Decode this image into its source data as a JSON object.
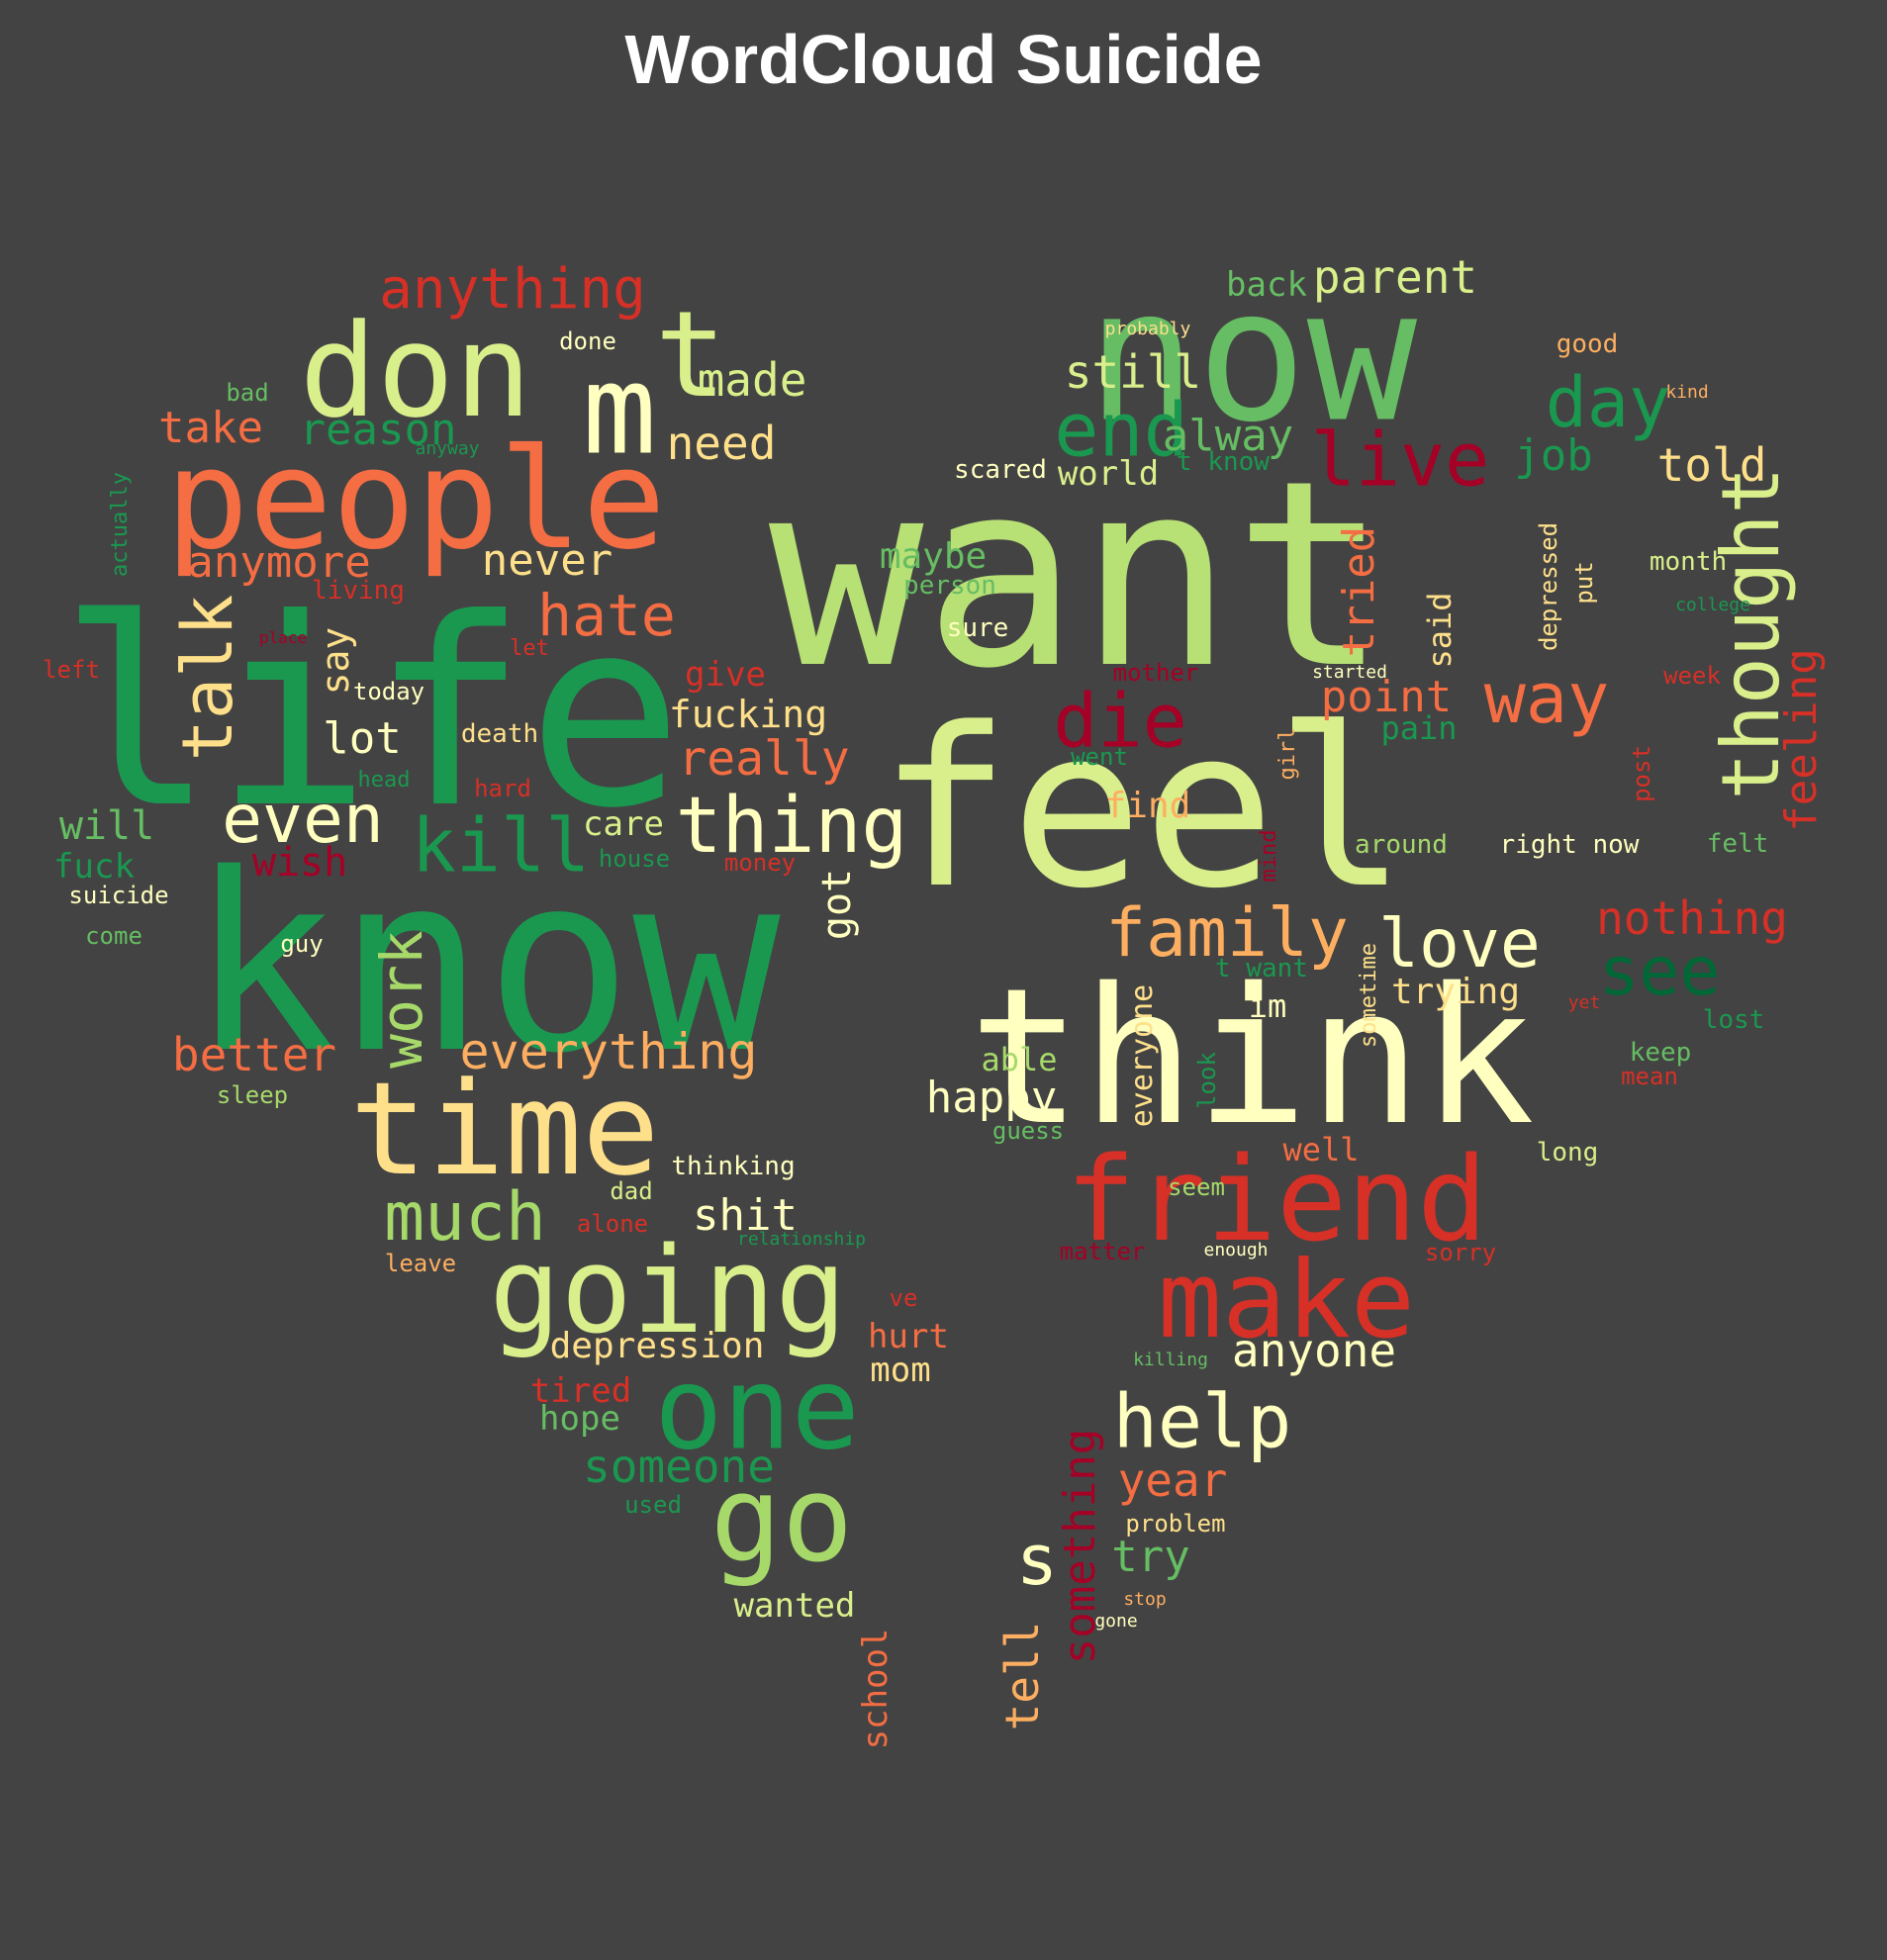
{
  "title": "WordCloud Suicide",
  "colors": {
    "background": "#434343",
    "title": "#ffffff"
  },
  "words": [
    {
      "text": "want",
      "color": "#b7e075"
    },
    {
      "text": "feel",
      "color": "#d9ef8b"
    },
    {
      "text": "know",
      "color": "#1a9850"
    },
    {
      "text": "life",
      "color": "#1a9850"
    },
    {
      "text": "think",
      "color": "#ffffbf"
    },
    {
      "text": "now",
      "color": "#66bd63"
    },
    {
      "text": "people",
      "color": "#f46d43"
    },
    {
      "text": "don",
      "color": "#d9ef8b"
    },
    {
      "text": "time",
      "color": "#fee08b"
    },
    {
      "text": "friend",
      "color": "#d73027"
    },
    {
      "text": "going",
      "color": "#d9ef8b"
    },
    {
      "text": "make",
      "color": "#d73027"
    },
    {
      "text": "one",
      "color": "#1a9850"
    },
    {
      "text": "go",
      "color": "#a6d96a"
    },
    {
      "text": "m",
      "color": "#ffffbf"
    },
    {
      "text": "t",
      "color": "#d9ef8b"
    },
    {
      "text": "thing",
      "color": "#ffffbf"
    },
    {
      "text": "end",
      "color": "#1a9850"
    },
    {
      "text": "live",
      "color": "#a50026"
    },
    {
      "text": "die",
      "color": "#a50026"
    },
    {
      "text": "family",
      "color": "#fdae61"
    },
    {
      "text": "love",
      "color": "#ffffbf"
    },
    {
      "text": "help",
      "color": "#ffffbf"
    },
    {
      "text": "thought",
      "color": "#d9ef8b"
    },
    {
      "text": "day",
      "color": "#1a9850"
    },
    {
      "text": "kill",
      "color": "#1a9850"
    },
    {
      "text": "much",
      "color": "#a6d96a"
    },
    {
      "text": "even",
      "color": "#ffffbf"
    },
    {
      "text": "talk",
      "color": "#fee08b"
    },
    {
      "text": "way",
      "color": "#f46d43"
    },
    {
      "text": "see",
      "color": "#006837"
    },
    {
      "text": "anything",
      "color": "#d73027"
    },
    {
      "text": "hate",
      "color": "#f46d43"
    },
    {
      "text": "work",
      "color": "#a6d96a"
    },
    {
      "text": "everything",
      "color": "#fdae61"
    },
    {
      "text": "s",
      "color": "#ffffbf"
    },
    {
      "text": "parent",
      "color": "#d9ef8b"
    },
    {
      "text": "still",
      "color": "#d9ef8b"
    },
    {
      "text": "made",
      "color": "#d9ef8b"
    },
    {
      "text": "need",
      "color": "#fee08b"
    },
    {
      "text": "better",
      "color": "#f46d43"
    },
    {
      "text": "someone",
      "color": "#1a9850"
    },
    {
      "text": "anyone",
      "color": "#ffffbf"
    },
    {
      "text": "told",
      "color": "#fee08b"
    },
    {
      "text": "nothing",
      "color": "#d73027"
    },
    {
      "text": "really",
      "color": "#f46d43"
    },
    {
      "text": "year",
      "color": "#f46d43"
    },
    {
      "text": "feeling",
      "color": "#d73027"
    },
    {
      "text": "anymore",
      "color": "#f46d43"
    },
    {
      "text": "reason",
      "color": "#1a9850"
    },
    {
      "text": "take",
      "color": "#f46d43"
    },
    {
      "text": "never",
      "color": "#fee08b"
    },
    {
      "text": "alway",
      "color": "#66bd63"
    },
    {
      "text": "lot",
      "color": "#ffffbf"
    },
    {
      "text": "point",
      "color": "#f46d43"
    },
    {
      "text": "job",
      "color": "#1a9850"
    },
    {
      "text": "fucking",
      "color": "#fee08b"
    },
    {
      "text": "tried",
      "color": "#f46d43"
    },
    {
      "text": "something",
      "color": "#a50026"
    },
    {
      "text": "tell",
      "color": "#fdae61"
    },
    {
      "text": "try",
      "color": "#66bd63"
    },
    {
      "text": "got",
      "color": "#ffffbf"
    },
    {
      "text": "say",
      "color": "#fee08b"
    },
    {
      "text": "wish",
      "color": "#a50026"
    },
    {
      "text": "will",
      "color": "#66bd63"
    },
    {
      "text": "happy",
      "color": "#ffffbf"
    },
    {
      "text": "trying",
      "color": "#fee08b"
    },
    {
      "text": "world",
      "color": "#d9ef8b"
    },
    {
      "text": "maybe",
      "color": "#66bd63"
    },
    {
      "text": "back",
      "color": "#66bd63"
    },
    {
      "text": "fuck",
      "color": "#1a9850"
    },
    {
      "text": "care",
      "color": "#d9ef8b"
    },
    {
      "text": "shit",
      "color": "#ffffbf"
    },
    {
      "text": "give",
      "color": "#d73027"
    },
    {
      "text": "find",
      "color": "#fdae61"
    },
    {
      "text": "hurt",
      "color": "#f46d43"
    },
    {
      "text": "mom",
      "color": "#fee08b"
    },
    {
      "text": "depression",
      "color": "#fee08b"
    },
    {
      "text": "hope",
      "color": "#66bd63"
    },
    {
      "text": "tired",
      "color": "#d73027"
    },
    {
      "text": "wanted",
      "color": "#d9ef8b"
    },
    {
      "text": "well",
      "color": "#f46d43"
    },
    {
      "text": "able",
      "color": "#a6d96a"
    },
    {
      "text": "pain",
      "color": "#1a9850"
    },
    {
      "text": "im",
      "color": "#ffffbf"
    },
    {
      "text": "said",
      "color": "#fee08b"
    },
    {
      "text": "everyone",
      "color": "#fee08b"
    },
    {
      "text": "school",
      "color": "#f46d43"
    },
    {
      "text": "good",
      "color": "#fdae61"
    },
    {
      "text": "t know",
      "color": "#1a9850"
    },
    {
      "text": "t want",
      "color": "#1a9850"
    },
    {
      "text": "scared",
      "color": "#ffffbf"
    },
    {
      "text": "person",
      "color": "#66bd63"
    },
    {
      "text": "sure",
      "color": "#ffffbf"
    },
    {
      "text": "month",
      "color": "#d9ef8b"
    },
    {
      "text": "depressed",
      "color": "#fee08b"
    },
    {
      "text": "put",
      "color": "#fee08b"
    },
    {
      "text": "week",
      "color": "#d73027"
    },
    {
      "text": "mother",
      "color": "#a50026"
    },
    {
      "text": "went",
      "color": "#1a9850"
    },
    {
      "text": "girl",
      "color": "#fdae61"
    },
    {
      "text": "around",
      "color": "#a6d96a"
    },
    {
      "text": "right now",
      "color": "#ffffbf"
    },
    {
      "text": "felt",
      "color": "#66bd63"
    },
    {
      "text": "post",
      "color": "#d73027"
    },
    {
      "text": "mind",
      "color": "#a50026"
    },
    {
      "text": "lost",
      "color": "#1a9850"
    },
    {
      "text": "keep",
      "color": "#66bd63"
    },
    {
      "text": "mean",
      "color": "#d73027"
    },
    {
      "text": "seem",
      "color": "#a6d96a"
    },
    {
      "text": "long",
      "color": "#d9ef8b"
    },
    {
      "text": "guess",
      "color": "#66bd63"
    },
    {
      "text": "look",
      "color": "#1a9850"
    },
    {
      "text": "sometime",
      "color": "#fee08b"
    },
    {
      "text": "yet",
      "color": "#d73027"
    },
    {
      "text": "matter",
      "color": "#a50026"
    },
    {
      "text": "sorry",
      "color": "#d73027"
    },
    {
      "text": "enough",
      "color": "#ffffbf"
    },
    {
      "text": "killing",
      "color": "#66bd63"
    },
    {
      "text": "problem",
      "color": "#fee08b"
    },
    {
      "text": "stop",
      "color": "#fdae61"
    },
    {
      "text": "gone",
      "color": "#ffffbf"
    },
    {
      "text": "probably",
      "color": "#fee08b"
    },
    {
      "text": "kind",
      "color": "#fdae61"
    },
    {
      "text": "started",
      "color": "#ffffbf"
    },
    {
      "text": "college",
      "color": "#1a9850"
    },
    {
      "text": "done",
      "color": "#ffffbf"
    },
    {
      "text": "bad",
      "color": "#66bd63"
    },
    {
      "text": "anyway",
      "color": "#1a9850"
    },
    {
      "text": "actually",
      "color": "#1a9850"
    },
    {
      "text": "living",
      "color": "#d73027"
    },
    {
      "text": "left",
      "color": "#d73027"
    },
    {
      "text": "alone",
      "color": "#d73027"
    },
    {
      "text": "let",
      "color": "#d73027"
    },
    {
      "text": "today",
      "color": "#ffffbf"
    },
    {
      "text": "death",
      "color": "#fee08b"
    },
    {
      "text": "head",
      "color": "#1a9850"
    },
    {
      "text": "hard",
      "color": "#d73027"
    },
    {
      "text": "house",
      "color": "#1a9850"
    },
    {
      "text": "money",
      "color": "#d73027"
    },
    {
      "text": "suicide",
      "color": "#ffffbf"
    },
    {
      "text": "come",
      "color": "#66bd63"
    },
    {
      "text": "guy",
      "color": "#ffffbf"
    },
    {
      "text": "sleep",
      "color": "#a6d96a"
    },
    {
      "text": "thinking",
      "color": "#ffffbf"
    },
    {
      "text": "dad",
      "color": "#d9ef8b"
    },
    {
      "text": "relationship",
      "color": "#1a9850"
    },
    {
      "text": "leave",
      "color": "#fdae61"
    },
    {
      "text": "used",
      "color": "#1a9850"
    },
    {
      "text": "ve",
      "color": "#d73027"
    },
    {
      "text": "place",
      "color": "#a50026"
    }
  ]
}
